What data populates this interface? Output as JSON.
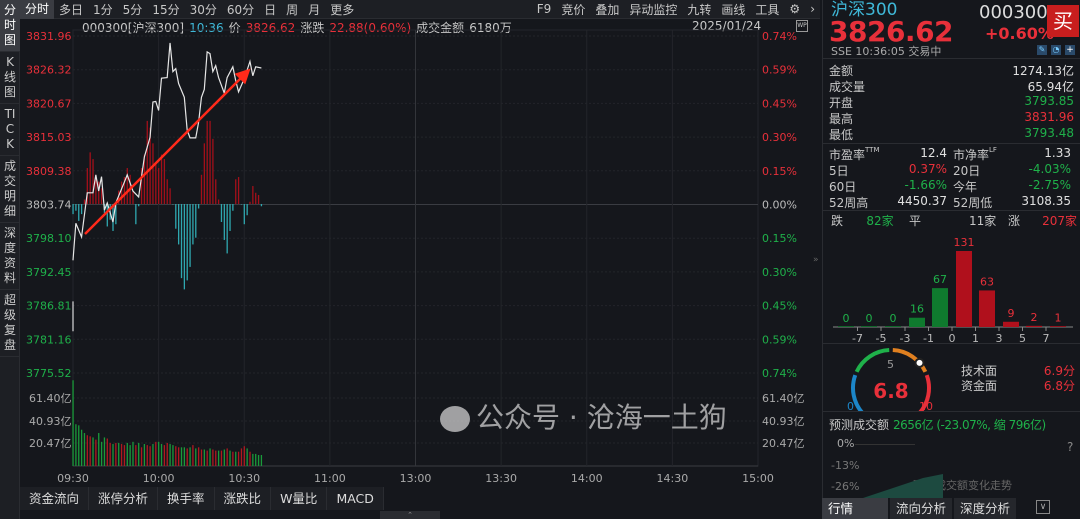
{
  "toolbar": {
    "left": [
      "分时",
      "多日",
      "1分",
      "5分",
      "15分",
      "30分",
      "60分",
      "日",
      "周",
      "月",
      "更多"
    ],
    "right": [
      "F9",
      "竞价",
      "叠加",
      "异动监控",
      "九转",
      "画线",
      "工具"
    ],
    "settings_icon": "gear-icon",
    "expand_icon": "chevron-right-icon"
  },
  "side_tabs": [
    "分时图",
    "K线图",
    "TICK",
    "成交明细",
    "深度资料",
    "超级复盘"
  ],
  "info": {
    "code": "000300[沪深300]",
    "time": "10:36",
    "price_label": "价",
    "price": "3826.62",
    "change_label": "涨跌",
    "change": "22.88(0.60%)",
    "amount_label": "成交金额",
    "amount": "6180万",
    "date": "2025/01/24"
  },
  "colors": {
    "up": "#e8303a",
    "down": "#1fb14a",
    "bar_up": "#a3101a",
    "bar_down": "#2fa8b0",
    "line": "#e6e6e6",
    "arrow": "#ff2a1a"
  },
  "chart_data": {
    "type": "line",
    "price_ticks": [
      "3831.96",
      "3826.32",
      "3820.67",
      "3815.03",
      "3809.38",
      "3803.74",
      "3798.10",
      "3792.45",
      "3786.81",
      "3781.16",
      "3775.52"
    ],
    "pct_ticks": [
      "0.74%",
      "0.59%",
      "0.45%",
      "0.30%",
      "0.15%",
      "0.00%",
      "0.15%",
      "0.30%",
      "0.45%",
      "0.59%",
      "0.74%"
    ],
    "ylim": [
      3775.52,
      3831.96
    ],
    "pre_close": 3803.74,
    "volume_ticks": [
      "61.40亿",
      "40.93亿",
      "20.47亿"
    ],
    "time_ticks": [
      "09:30",
      "10:00",
      "10:30",
      "11:00",
      "13:00",
      "13:30",
      "14:00",
      "14:30",
      "15:00"
    ],
    "price_series": [
      [
        0,
        3794.4
      ],
      [
        1,
        3800.6
      ],
      [
        3,
        3798.3
      ],
      [
        5,
        3805.7
      ],
      [
        7,
        3805.7
      ],
      [
        8,
        3808.7
      ],
      [
        9,
        3806
      ],
      [
        10,
        3808.4
      ],
      [
        11,
        3802.8
      ],
      [
        12,
        3804
      ],
      [
        14,
        3800.8
      ],
      [
        15,
        3804
      ],
      [
        18,
        3807.5
      ],
      [
        19,
        3808.7
      ],
      [
        21,
        3806
      ],
      [
        23,
        3805
      ],
      [
        25,
        3811.7
      ],
      [
        27,
        3815
      ],
      [
        28,
        3820.9
      ],
      [
        29,
        3821
      ],
      [
        30,
        3819.5
      ],
      [
        31,
        3824.9
      ],
      [
        33,
        3825
      ],
      [
        34,
        3830.8
      ],
      [
        35,
        3826
      ],
      [
        36,
        3826.5
      ],
      [
        37,
        3824
      ],
      [
        39,
        3821.7
      ],
      [
        40,
        3816.2
      ],
      [
        41,
        3814.9
      ],
      [
        43,
        3814.9
      ],
      [
        44,
        3817.5
      ],
      [
        45,
        3821.7
      ],
      [
        46,
        3823
      ],
      [
        47,
        3829.3
      ],
      [
        48,
        3829
      ],
      [
        49,
        3826
      ],
      [
        50,
        3827
      ],
      [
        51,
        3825
      ],
      [
        53,
        3822.4
      ],
      [
        54,
        3825
      ],
      [
        56,
        3826.8
      ],
      [
        57,
        3824.5
      ],
      [
        58,
        3822.6
      ],
      [
        60,
        3824.8
      ],
      [
        62,
        3827.7
      ],
      [
        63,
        3825.3
      ],
      [
        64,
        3826.8
      ],
      [
        66,
        3826.6
      ]
    ],
    "breadth_bars_pct": [
      -0.045,
      -0.03,
      -0.075,
      -0.045,
      0.02,
      0.16,
      0.23,
      0.2,
      0.13,
      0.1,
      0.07,
      -0.04,
      -0.1,
      -0.07,
      -0.12,
      -0.09,
      0.06,
      0.1,
      0.12,
      0.16,
      0.13,
      0.06,
      -0.09,
      -0.01,
      0.16,
      0.22,
      0.37,
      0.34,
      0.27,
      0.18,
      0.16,
      0.22,
      0.2,
      0.11,
      0.07,
      0,
      -0.11,
      -0.18,
      -0.33,
      -0.38,
      -0.34,
      -0.28,
      -0.18,
      -0.15,
      -0.02,
      0.13,
      0.27,
      0.37,
      0.37,
      0.29,
      0.11,
      0.02,
      -0.08,
      -0.16,
      -0.22,
      -0.12,
      -0.03,
      0.11,
      0.12,
      0,
      -0.09,
      -0.05,
      0.01,
      0.08,
      0.05,
      0.04,
      -0.01
    ],
    "volume_yi": [
      78,
      38,
      37,
      33,
      30,
      28,
      27,
      26,
      24,
      30,
      22,
      26,
      25,
      21,
      20,
      21,
      21,
      20,
      19,
      21,
      19,
      22,
      19,
      21,
      17,
      20,
      19,
      18,
      20,
      22,
      22,
      20,
      19,
      21,
      20,
      19,
      18,
      17,
      17,
      17,
      16,
      17,
      19,
      16,
      17,
      15,
      15,
      14,
      16,
      15,
      14,
      14,
      14,
      15,
      16,
      14,
      13,
      13,
      13,
      16,
      18,
      16,
      13,
      11,
      11,
      10,
      10
    ]
  },
  "bottom_tabs": [
    "资金流向",
    "涨停分析",
    "换手率",
    "涨跌比",
    "W量比",
    "MACD"
  ],
  "quote": {
    "name": "沪深300",
    "code": "000300",
    "price": "3826.62",
    "pct": "+0.60%",
    "buy": "买",
    "exchange": "SSE",
    "time": "10:36:05",
    "status": "交易中",
    "stats": [
      {
        "label": "金额",
        "value": "1274.13亿",
        "c": "white"
      },
      {
        "label": "成交量",
        "value": "65.94亿",
        "c": "white"
      },
      {
        "label": "开盘",
        "value": "3793.85",
        "c": "green"
      },
      {
        "label": "最高",
        "value": "3831.96",
        "c": "red"
      },
      {
        "label": "最低",
        "value": "3793.48",
        "c": "green"
      }
    ],
    "pairs": [
      [
        {
          "label": "市盈率",
          "sup": "TTM",
          "value": "12.4",
          "c": "white"
        },
        {
          "label": "市净率",
          "sup": "LF",
          "value": "1.33",
          "c": "white"
        }
      ],
      [
        {
          "label": "5日",
          "value": "0.37%",
          "c": "red"
        },
        {
          "label": "20日",
          "value": "-4.03%",
          "c": "green"
        }
      ],
      [
        {
          "label": "60日",
          "value": "-1.66%",
          "c": "green"
        },
        {
          "label": "今年",
          "value": "-2.75%",
          "c": "green"
        }
      ],
      [
        {
          "label": "52周高",
          "value": "4450.37",
          "c": "white"
        },
        {
          "label": "52周低",
          "value": "3108.35",
          "c": "white"
        }
      ]
    ],
    "breadth": {
      "down_label": "跌",
      "down": "82家",
      "flat_label": "平",
      "flat": "11家",
      "up_label": "涨",
      "up": "207家"
    }
  },
  "distribution": {
    "counts": [
      0,
      0,
      0,
      16,
      67,
      131,
      63,
      9,
      2,
      1
    ],
    "ticks": [
      "-7",
      "-5",
      "-3",
      "-1",
      "0",
      "1",
      "3",
      "5",
      "7"
    ]
  },
  "score": {
    "value": "6.8",
    "level": 6.8,
    "min": "0",
    "mid": "5",
    "max": "10",
    "tech_label": "技术面",
    "tech": "6.9分",
    "fund_label": "资金面",
    "fund": "6.8分"
  },
  "forecast": {
    "label": "预测成交额",
    "value": "2656亿 (-23.07%, 缩 796亿)",
    "ticks": [
      "0%",
      "-13%",
      "-26%"
    ],
    "help": "?",
    "chart_title": "预测成交额变化走势"
  },
  "watermark": "公众号 · 沧海一土狗",
  "right_tabs": [
    "行情",
    "流向分析",
    "深度分析"
  ]
}
